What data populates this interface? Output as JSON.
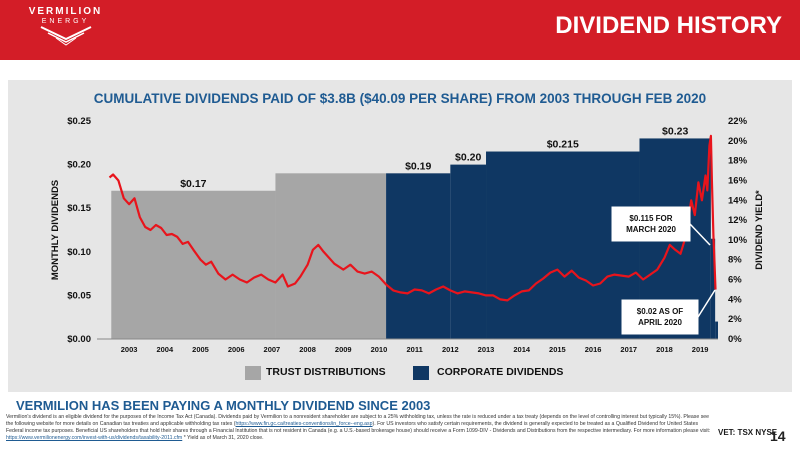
{
  "header": {
    "logo_name": "VERMILION",
    "logo_sub": "ENERGY",
    "title": "DIVIDEND HISTORY"
  },
  "chart_data": {
    "type": "bar",
    "title": "CUMULATIVE DIVIDENDS PAID OF $3.8B ($40.09 PER SHARE) FROM 2003 THROUGH FEB 2020",
    "ylabel": "MONTHLY DIVIDENDS",
    "y2label": "DIVIDEND YIELD*",
    "ylim": [
      0,
      0.25
    ],
    "y2lim": [
      0,
      22
    ],
    "yticks": [
      "$0.00",
      "$0.05",
      "$0.10",
      "$0.15",
      "$0.20",
      "$0.25"
    ],
    "y2ticks": [
      "0%",
      "2%",
      "4%",
      "6%",
      "8%",
      "10%",
      "12%",
      "14%",
      "16%",
      "18%",
      "20%",
      "22%"
    ],
    "categories": [
      "2003",
      "2004",
      "2005",
      "2006",
      "2007",
      "2008",
      "2009",
      "2010",
      "2011",
      "2012",
      "2013",
      "2014",
      "2015",
      "2016",
      "2017",
      "2018",
      "2019"
    ],
    "grid": false,
    "legend_position": "bottom",
    "series": [
      {
        "name": "TRUST DISTRIBUTIONS",
        "color": "#a6a6a6",
        "steps": [
          {
            "start": 2003.0,
            "end": 2007.6,
            "value": 0.17,
            "label": "$0.17"
          },
          {
            "start": 2007.6,
            "end": 2010.7,
            "value": 0.19,
            "label": ""
          }
        ]
      },
      {
        "name": "CORPORATE DIVIDENDS",
        "color": "#0f3763",
        "steps": [
          {
            "start": 2010.7,
            "end": 2012.5,
            "value": 0.19,
            "label": "$0.19"
          },
          {
            "start": 2012.5,
            "end": 2013.5,
            "value": 0.2,
            "label": "$0.20"
          },
          {
            "start": 2013.5,
            "end": 2017.8,
            "value": 0.215,
            "label": "$0.215"
          },
          {
            "start": 2017.8,
            "end": 2019.8,
            "value": 0.23,
            "label": "$0.23"
          },
          {
            "start": 2019.8,
            "end": 2019.92,
            "value": 0.115,
            "label": ""
          },
          {
            "start": 2019.92,
            "end": 2020.0,
            "value": 0.02,
            "label": ""
          }
        ]
      }
    ],
    "yield_series": {
      "name": "DIVIDEND YIELD*",
      "color": "#e8141c",
      "points": [
        [
          2002.95,
          16.3
        ],
        [
          2003.05,
          16.6
        ],
        [
          2003.2,
          16.0
        ],
        [
          2003.35,
          14.2
        ],
        [
          2003.5,
          13.6
        ],
        [
          2003.65,
          14.2
        ],
        [
          2003.8,
          12.3
        ],
        [
          2003.95,
          11.3
        ],
        [
          2004.1,
          11.0
        ],
        [
          2004.25,
          11.5
        ],
        [
          2004.4,
          11.2
        ],
        [
          2004.55,
          10.5
        ],
        [
          2004.7,
          10.6
        ],
        [
          2004.85,
          10.3
        ],
        [
          2005.0,
          9.6
        ],
        [
          2005.15,
          9.8
        ],
        [
          2005.3,
          9.0
        ],
        [
          2005.5,
          8.0
        ],
        [
          2005.65,
          7.5
        ],
        [
          2005.8,
          7.8
        ],
        [
          2006.0,
          6.6
        ],
        [
          2006.2,
          6.0
        ],
        [
          2006.4,
          6.5
        ],
        [
          2006.6,
          6.0
        ],
        [
          2006.8,
          5.7
        ],
        [
          2007.0,
          6.2
        ],
        [
          2007.2,
          6.5
        ],
        [
          2007.4,
          6.0
        ],
        [
          2007.6,
          5.7
        ],
        [
          2007.8,
          6.5
        ],
        [
          2007.95,
          5.3
        ],
        [
          2008.15,
          5.6
        ],
        [
          2008.3,
          6.3
        ],
        [
          2008.5,
          7.5
        ],
        [
          2008.65,
          9.0
        ],
        [
          2008.8,
          9.5
        ],
        [
          2008.95,
          8.8
        ],
        [
          2009.1,
          8.2
        ],
        [
          2009.25,
          7.6
        ],
        [
          2009.5,
          7.0
        ],
        [
          2009.7,
          7.5
        ],
        [
          2009.9,
          6.8
        ],
        [
          2010.1,
          6.6
        ],
        [
          2010.3,
          6.8
        ],
        [
          2010.5,
          6.3
        ],
        [
          2010.7,
          5.5
        ],
        [
          2010.9,
          4.9
        ],
        [
          2011.1,
          4.7
        ],
        [
          2011.3,
          4.6
        ],
        [
          2011.5,
          5.0
        ],
        [
          2011.7,
          4.9
        ],
        [
          2011.9,
          4.6
        ],
        [
          2012.1,
          5.0
        ],
        [
          2012.3,
          5.3
        ],
        [
          2012.5,
          4.9
        ],
        [
          2012.7,
          4.6
        ],
        [
          2012.9,
          4.8
        ],
        [
          2013.1,
          4.7
        ],
        [
          2013.3,
          4.6
        ],
        [
          2013.5,
          4.4
        ],
        [
          2013.7,
          4.4
        ],
        [
          2013.9,
          4.0
        ],
        [
          2014.1,
          3.9
        ],
        [
          2014.3,
          4.4
        ],
        [
          2014.5,
          4.8
        ],
        [
          2014.7,
          4.9
        ],
        [
          2014.9,
          5.6
        ],
        [
          2015.1,
          6.1
        ],
        [
          2015.3,
          6.7
        ],
        [
          2015.5,
          7.0
        ],
        [
          2015.7,
          6.3
        ],
        [
          2015.9,
          6.9
        ],
        [
          2016.1,
          6.2
        ],
        [
          2016.3,
          5.9
        ],
        [
          2016.5,
          5.4
        ],
        [
          2016.7,
          5.6
        ],
        [
          2016.9,
          6.3
        ],
        [
          2017.1,
          6.5
        ],
        [
          2017.3,
          6.4
        ],
        [
          2017.5,
          6.3
        ],
        [
          2017.7,
          6.7
        ],
        [
          2017.9,
          6.0
        ],
        [
          2018.1,
          6.5
        ],
        [
          2018.3,
          7.0
        ],
        [
          2018.5,
          8.2
        ],
        [
          2018.65,
          9.5
        ],
        [
          2018.8,
          9.0
        ],
        [
          2018.95,
          8.6
        ],
        [
          2019.05,
          9.8
        ],
        [
          2019.15,
          11.5
        ],
        [
          2019.25,
          14.0
        ],
        [
          2019.35,
          12.5
        ],
        [
          2019.45,
          15.8
        ],
        [
          2019.55,
          14.0
        ],
        [
          2019.65,
          16.5
        ],
        [
          2019.7,
          15.0
        ],
        [
          2019.76,
          19.5
        ],
        [
          2019.8,
          20.5
        ],
        [
          2019.83,
          16.0
        ],
        [
          2019.87,
          10.5
        ],
        [
          2019.9,
          8.0
        ],
        [
          2019.93,
          5.0
        ]
      ]
    },
    "annotations": [
      {
        "text_lines": [
          "$0.115 FOR",
          "MARCH 2020"
        ]
      },
      {
        "text_lines": [
          "$0.02 AS OF",
          "APRIL 2020"
        ]
      }
    ]
  },
  "legend": {
    "trust": "TRUST DISTRIBUTIONS",
    "corporate": "CORPORATE DIVIDENDS"
  },
  "footer": {
    "heading": "VERMILION HAS BEEN PAYING A MONTHLY DIVIDEND SINCE 2003",
    "footnote_a": "Vermilion's dividend is an eligible dividend for the purposes of the Income Tax Act (Canada). Dividends paid by Vermilion to a nonresident shareholder are subject to a 25% withholding tax, unless the rate is reduced under a tax treaty (depends on the level of controlling interest but typically 15%). Please see the following website for more details on Canadian tax treaties and applicable withholding tax rates (",
    "footnote_link1": "https://www.fin.gc.ca/treaties-conventions/in_force--eng.asp",
    "footnote_b": "). For US investors who satisfy certain requirements, the dividend is generally expected to be treated as a Qualified Dividend for United States Federal income tax purposes. Beneficial US shareholders that hold their shares through a Financial Institution that is not resident in Canada (e.g. a U.S.-based brokerage house) should receive a Form 1099-DIV - Dividends and Distributions from the respective intermediary. For more information please visit: ",
    "footnote_link2": "https://www.vermilionenergy.com/invest-with-us/dividends/taxability-2011.cfm",
    "footnote_c": " * Yield as of March 31, 2020 close.",
    "exchanges": "VET: TSX NYSE",
    "page_number": "14"
  }
}
